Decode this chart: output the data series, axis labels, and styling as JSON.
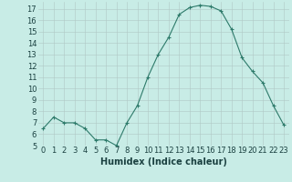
{
  "x": [
    0,
    1,
    2,
    3,
    4,
    5,
    6,
    7,
    8,
    9,
    10,
    11,
    12,
    13,
    14,
    15,
    16,
    17,
    18,
    19,
    20,
    21,
    22,
    23
  ],
  "y": [
    6.5,
    7.5,
    7.0,
    7.0,
    6.5,
    5.5,
    5.5,
    5.0,
    7.0,
    8.5,
    11.0,
    13.0,
    14.5,
    16.5,
    17.1,
    17.3,
    17.2,
    16.8,
    15.2,
    12.7,
    11.5,
    10.5,
    8.5,
    6.8
  ],
  "line_color": "#2d7a6a",
  "marker": "+",
  "marker_size": 3,
  "marker_linewidth": 0.8,
  "line_width": 0.8,
  "bg_color": "#c8ece6",
  "grid_color": "#b0c8c4",
  "xlabel": "Humidex (Indice chaleur)",
  "xlim": [
    -0.5,
    23.5
  ],
  "ylim": [
    5,
    17.6
  ],
  "yticks": [
    5,
    6,
    7,
    8,
    9,
    10,
    11,
    12,
    13,
    14,
    15,
    16,
    17
  ],
  "xtick_labels": [
    "0",
    "1",
    "2",
    "3",
    "4",
    "5",
    "6",
    "7",
    "8",
    "9",
    "10",
    "11",
    "12",
    "13",
    "14",
    "15",
    "16",
    "17",
    "18",
    "19",
    "20",
    "21",
    "22",
    "23"
  ],
  "tick_fontsize": 6,
  "xlabel_fontsize": 7,
  "label_color": "#1a4040"
}
